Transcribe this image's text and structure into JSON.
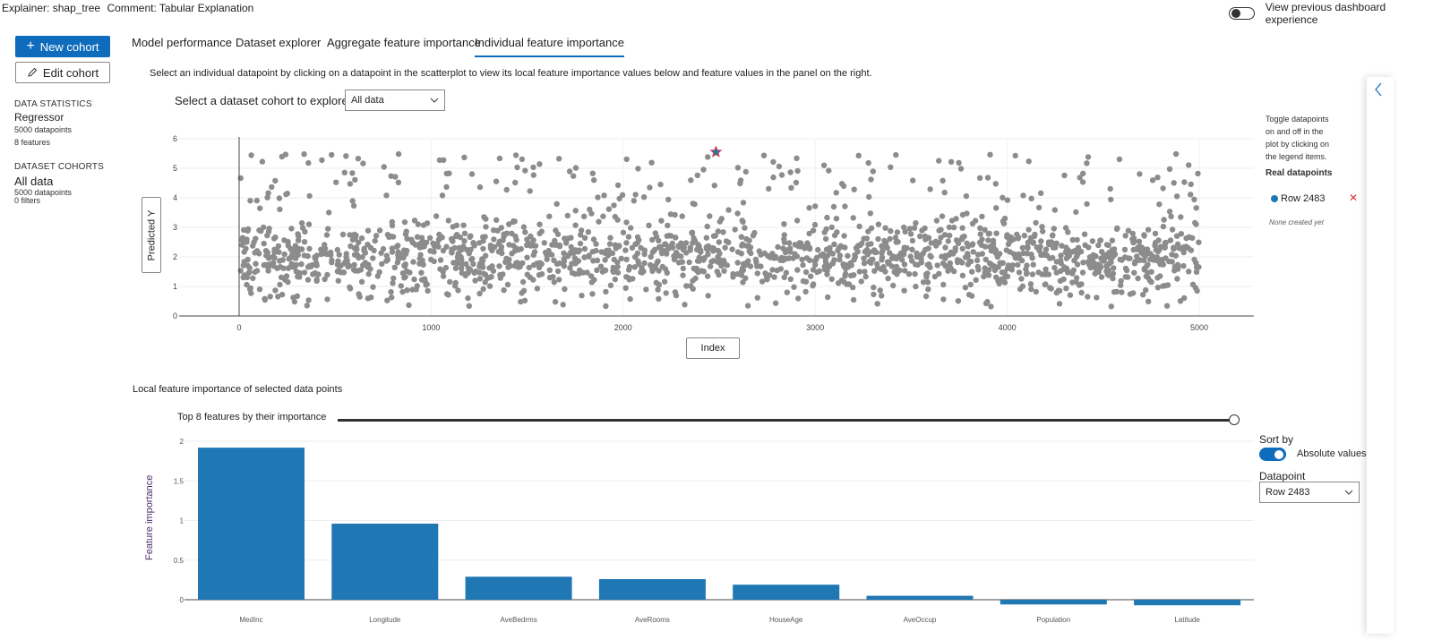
{
  "header": {
    "explainer_label": "Explainer:",
    "explainer_value": "shap_tree",
    "comment_label": "Comment:",
    "comment_value": "Tabular Explanation",
    "toggle_label": "View previous dashboard experience"
  },
  "sidebar": {
    "new_cohort": "New cohort",
    "edit_cohort": "Edit cohort",
    "data_statistics_title": "DATA STATISTICS",
    "model_type": "Regressor",
    "datapoints": "5000 datapoints",
    "features": "8 features",
    "dataset_cohorts_title": "DATASET COHORTS",
    "cohort_name": "All data",
    "cohort_datapoints": "5000 datapoints",
    "cohort_filters": "0 filters"
  },
  "tabs": [
    {
      "label": "Model performance"
    },
    {
      "label": "Dataset explorer"
    },
    {
      "label": "Aggregate feature importance"
    },
    {
      "label": "Individual feature importance"
    }
  ],
  "main": {
    "instructions": "Select an individual datapoint by clicking on a datapoint in the scatterplot to view its local feature importance values below and feature values in the panel on the right.",
    "cohort_select_label": "Select a dataset cohort to explore",
    "cohort_select_value": "All data",
    "scatter_y_button": "Predicted Y",
    "scatter_x_button": "Index",
    "legend_hint": "Toggle datapoints on and off in the plot by clicking on the legend items.",
    "legend_real_title": "Real datapoints",
    "legend_row": "Row 2483",
    "legend_none": "None created yet",
    "local_title": "Local feature importance of selected data points",
    "top_k_label": "Top 8 features by their importance",
    "sort_by_label": "Sort by",
    "absolute_values_label": "Absolute values",
    "datapoint_label": "Datapoint",
    "datapoint_value": "Row 2483"
  },
  "colors": {
    "accent": "#0f6cbd",
    "scatter_point": "#8c8c8c",
    "bar": "#1f77b4",
    "selected_marker": "#1f77b4"
  },
  "chart_data": [
    {
      "type": "scatter",
      "xlabel": "Index",
      "ylabel": "Predicted Y",
      "xlim": [
        -300,
        5300
      ],
      "ylim": [
        0,
        6
      ],
      "x_ticks": [
        0,
        1000,
        2000,
        3000,
        4000,
        5000
      ],
      "y_ticks": [
        0,
        1,
        2,
        3,
        4,
        5,
        6
      ],
      "point_count": 5000,
      "series": [
        {
          "name": "Real datapoints",
          "description_values": "5000 points, index 0-5000, predicted Y mostly between 0.5 and 5.5"
        }
      ],
      "selected_point": {
        "label": "Row 2483",
        "x": 2483,
        "y": 5.55
      }
    },
    {
      "type": "bar",
      "ylabel": "Feature importance",
      "ylim": [
        -0.05,
        2
      ],
      "y_ticks": [
        0,
        0.5,
        1,
        1.5,
        2
      ],
      "categories": [
        "MedInc",
        "Longitude",
        "AveBedrms",
        "AveRooms",
        "HouseAge",
        "AveOccup",
        "Population",
        "Latitude"
      ],
      "values": [
        1.92,
        0.96,
        0.29,
        0.26,
        0.19,
        0.05,
        -0.06,
        -0.07
      ]
    }
  ]
}
